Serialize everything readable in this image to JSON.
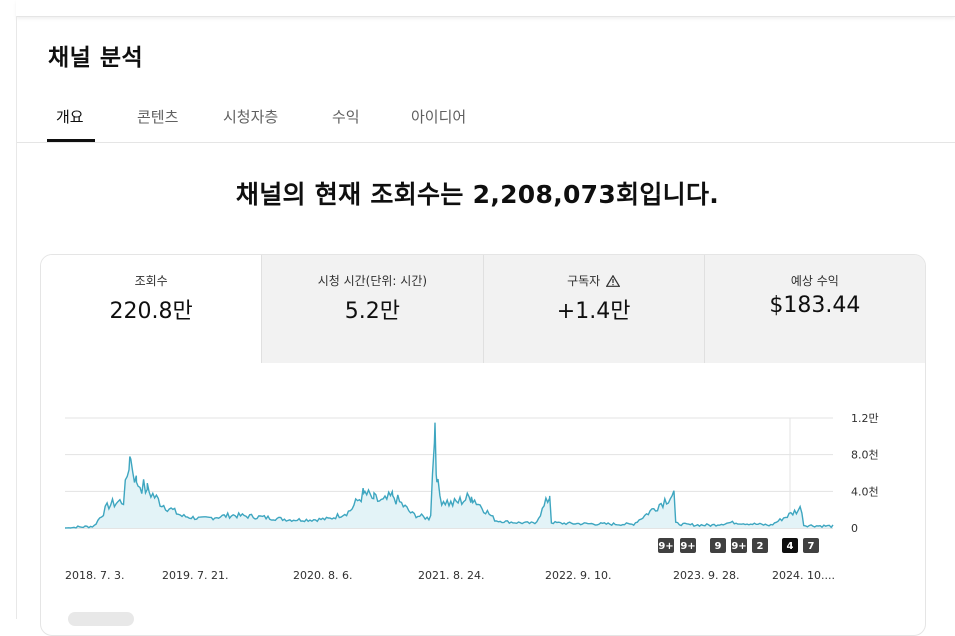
{
  "page_title": "채널 분석",
  "tabs": [
    {
      "label": "개요",
      "active": true
    },
    {
      "label": "콘텐츠",
      "active": false
    },
    {
      "label": "시청자층",
      "active": false
    },
    {
      "label": "수익",
      "active": false
    },
    {
      "label": "아이디어",
      "active": false
    }
  ],
  "headline": "채널의 현재 조회수는 2,208,073회입니다.",
  "metrics": [
    {
      "label": "조회수",
      "value": "220.8만",
      "active": true
    },
    {
      "label": "시청 시간(단위: 시간)",
      "value": "5.2만",
      "active": false
    },
    {
      "label": "구독자",
      "value": "+1.4만",
      "active": false,
      "icon": "warning-icon"
    },
    {
      "label": "예상 수익",
      "value": "$183.44",
      "active": false
    }
  ],
  "colors": {
    "accent": "#3ea6c0",
    "fill": "#e3f3f7",
    "active_tab": "#0f0f0f",
    "metric_inactive_bg": "#f2f2f2"
  },
  "chart_data": {
    "type": "area",
    "y_ticks": [
      "0",
      "4.0천",
      "8.0천",
      "1.2만"
    ],
    "ylim": [
      0,
      12000
    ],
    "x_tick_labels": [
      "2018. 7. 3.",
      "2019. 7. 21.",
      "2020. 8. 6.",
      "2021. 8. 24.",
      "2022. 9. 10.",
      "2023. 9. 28.",
      "2024. 10...."
    ],
    "grid": true,
    "markers": [
      {
        "label": "9+",
        "style": "dark"
      },
      {
        "label": "9+",
        "style": "dark"
      },
      {
        "label": "9",
        "style": "dark"
      },
      {
        "label": "9+",
        "style": "dark"
      },
      {
        "label": "2",
        "style": "dark"
      },
      {
        "label": "4",
        "style": "black"
      },
      {
        "label": "7",
        "style": "dark"
      }
    ],
    "series": [
      {
        "x": [
          "2018-07-03",
          "2018-10-01",
          "2018-11-15",
          "2019-01-01",
          "2019-01-20",
          "2019-02-10",
          "2019-03-15",
          "2019-05-01",
          "2019-07-01",
          "2019-09-01",
          "2019-12-01",
          "2020-03-01",
          "2020-06-01",
          "2020-08-06",
          "2020-10-01",
          "2020-12-01",
          "2021-01-15",
          "2021-02-15",
          "2021-03-15",
          "2021-04-15",
          "2021-06-15",
          "2021-08-10",
          "2021-08-24",
          "2021-08-30",
          "2021-09-10",
          "2021-10-15",
          "2021-12-15",
          "2022-01-20",
          "2022-03-01",
          "2022-05-01",
          "2022-07-01",
          "2022-08-15",
          "2022-08-20",
          "2022-10-01",
          "2023-01-01",
          "2023-05-01",
          "2023-09-05",
          "2023-09-10",
          "2023-10-15",
          "2024-01-01",
          "2024-03-01",
          "2024-07-01",
          "2024-10-05",
          "2024-10-10",
          "2024-11-15",
          "2025-01-10"
        ],
        "values": [
          0,
          200,
          2500,
          3000,
          7800,
          5000,
          4200,
          2600,
          1300,
          1000,
          1400,
          1200,
          900,
          900,
          1000,
          1800,
          3800,
          3200,
          2800,
          3500,
          1500,
          1000,
          11500,
          5000,
          3200,
          2600,
          3400,
          2200,
          800,
          600,
          500,
          3500,
          600,
          500,
          450,
          400,
          3800,
          500,
          350,
          300,
          600,
          300,
          2200,
          300,
          250,
          200
        ]
      }
    ]
  }
}
